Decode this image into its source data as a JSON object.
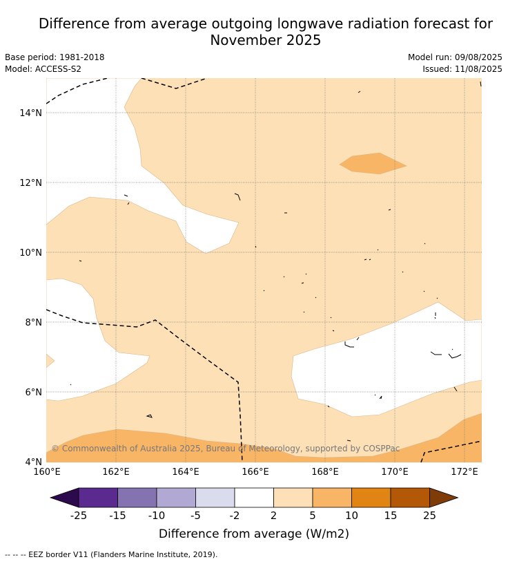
{
  "title": {
    "line1": "Difference from average outgoing longwave radiation forecast for",
    "line2": "November 2025"
  },
  "meta": {
    "base_period": "Base period: 1981-2018",
    "model": "Model: ACCESS-S2",
    "model_run": "Model run: 09/08/2025",
    "issued": "Issued: 11/08/2025"
  },
  "map": {
    "lat_labels": [
      "14°N",
      "12°N",
      "10°N",
      "8°N",
      "6°N",
      "4°N"
    ],
    "lon_labels": [
      "160°E",
      "162°E",
      "164°E",
      "166°E",
      "168°E",
      "170°E",
      "172°E"
    ],
    "copyright": "© Commonwealth of Australia 2025, Bureau of Meteorology, supported by COSPPac"
  },
  "colorbar": {
    "ticks": [
      "-25",
      "-15",
      "-10",
      "-5",
      "-2",
      "2",
      "5",
      "10",
      "15",
      "25"
    ],
    "colors": [
      "#2d0a4e",
      "#5b2a8e",
      "#8473b0",
      "#b1a9d3",
      "#dadbec",
      "#ffffff",
      "#fde0b5",
      "#f9b566",
      "#e08414",
      "#b35806",
      "#7f3b08"
    ],
    "label": "Difference from average (W/m2)"
  },
  "footnote": "--  --  -- EEZ border V11 (Flanders Marine Institute, 2019)."
}
